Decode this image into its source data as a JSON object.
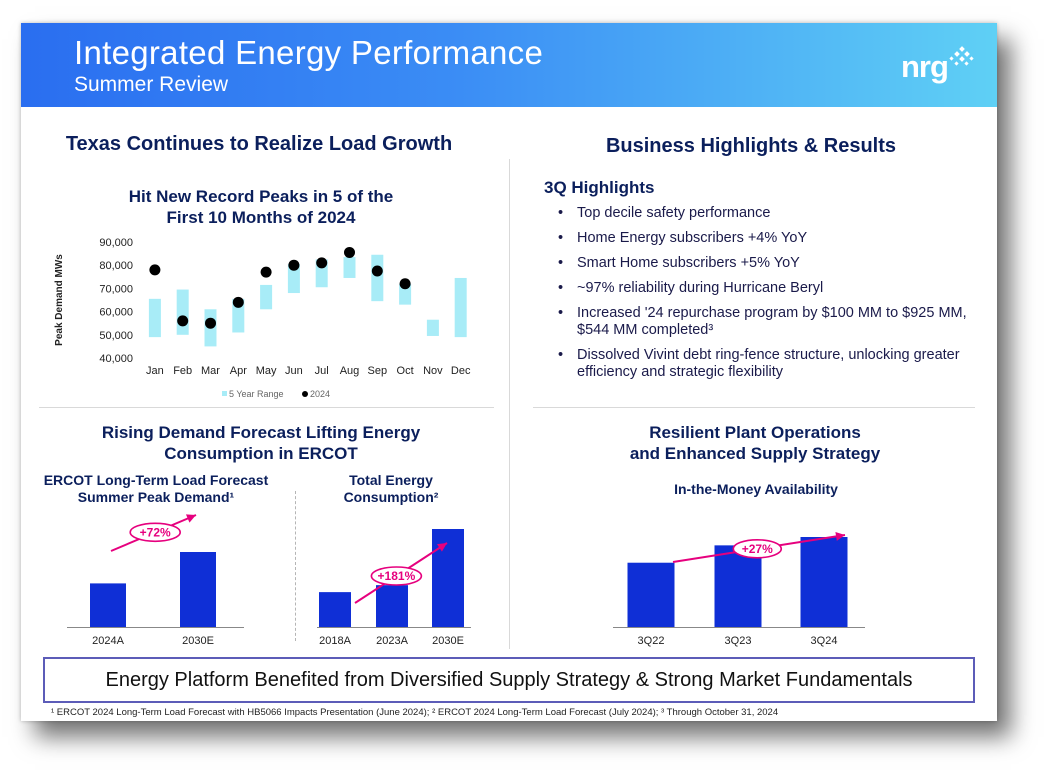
{
  "header": {
    "title": "Integrated Energy Performance",
    "subtitle": "Summer Review",
    "logo_text": "nrg"
  },
  "left_top": {
    "section_title": "Texas Continues to Realize Load Growth",
    "chart_title_line1": "Hit New Record Peaks in 5 of the",
    "chart_title_line2": "First 10 Months of 2024"
  },
  "right_top": {
    "section_title": "Business Highlights & Results",
    "highlights_title": "3Q Highlights",
    "bullet_char": "•",
    "bullets": [
      "Top decile safety performance",
      "Home Energy subscribers +4% YoY",
      "Smart Home subscribers +5% YoY",
      "~97% reliability during Hurricane Beryl",
      "Increased '24 repurchase program by $100 MM to $925 MM, $544 MM completed³",
      "Dissolved Vivint debt ring-fence structure, unlocking greater efficiency and strategic flexibility"
    ]
  },
  "left_bottom": {
    "section_title_line1": "Rising Demand Forecast Lifting Energy",
    "section_title_line2": "Consumption in ERCOT",
    "chart1_title_line1": "ERCOT Long-Term Load Forecast",
    "chart1_title_line2": "Summer Peak Demand¹",
    "chart2_title_line1": "Total Energy",
    "chart2_title_line2": "Consumption²"
  },
  "right_bottom": {
    "section_title_line1": "Resilient Plant Operations",
    "section_title_line2": "and Enhanced Supply Strategy",
    "chart_title": "In-the-Money Availability"
  },
  "banner": "Energy Platform Benefited from Diversified Supply Strategy & Strong Market Fundamentals",
  "footnote": "¹ ERCOT 2024 Long-Term Load Forecast with HB5066 Impacts Presentation (June 2024); ² ERCOT 2024 Long-Term Load Forecast (July 2024); ³ Through October 31, 2024",
  "colors": {
    "range": "#a8ecf7",
    "dot": "#000000",
    "bar": "#0f2fd6",
    "arrow": "#e6007e",
    "navy": "#0b1f5c"
  },
  "chart_data": [
    {
      "type": "bar",
      "id": "peak-demand",
      "title": "Hit New Record Peaks in 5 of the First 10 Months of 2024",
      "ylabel": "Peak Demand MWs",
      "ylim": [
        40000,
        90000
      ],
      "yticks": [
        40000,
        50000,
        60000,
        70000,
        80000,
        90000
      ],
      "ytick_labels": [
        "40,000",
        "50,000",
        "60,000",
        "70,000",
        "80,000",
        "90,000"
      ],
      "categories": [
        "Jan",
        "Feb",
        "Mar",
        "Apr",
        "May",
        "Jun",
        "Jul",
        "Aug",
        "Sep",
        "Oct",
        "Nov",
        "Dec"
      ],
      "series": [
        {
          "name": "5 Year Range",
          "kind": "floating-range",
          "low": [
            49000,
            50000,
            45000,
            51000,
            61000,
            68000,
            70500,
            74500,
            64500,
            63000,
            49500,
            49000
          ],
          "high": [
            65500,
            69500,
            61000,
            65500,
            71500,
            80500,
            82500,
            83500,
            84500,
            72000,
            56500,
            74500
          ]
        },
        {
          "name": "2024",
          "kind": "points",
          "values": [
            78000,
            56000,
            55000,
            64000,
            77000,
            80000,
            81000,
            85500,
            77500,
            72000,
            null,
            null
          ]
        }
      ],
      "legend": {
        "placement": "bottom",
        "entries": [
          "5 Year Range",
          "2024"
        ]
      }
    },
    {
      "type": "bar",
      "id": "ercot-summer-peak",
      "title": "ERCOT Long-Term Load Forecast Summer Peak Demand¹",
      "categories": [
        "2024A",
        "2030E"
      ],
      "values": [
        100,
        172
      ],
      "annotation": "+72%"
    },
    {
      "type": "bar",
      "id": "total-energy-consumption",
      "title": "Total Energy Consumption²",
      "categories": [
        "2018A",
        "2023A",
        "2030E"
      ],
      "values": [
        100,
        120,
        281
      ],
      "annotation": "+181%"
    },
    {
      "type": "bar",
      "id": "in-the-money-availability",
      "title": "In-the-Money Availability",
      "categories": [
        "3Q22",
        "3Q23",
        "3Q24"
      ],
      "values": [
        100,
        127,
        140
      ],
      "annotation": "+27%"
    }
  ]
}
